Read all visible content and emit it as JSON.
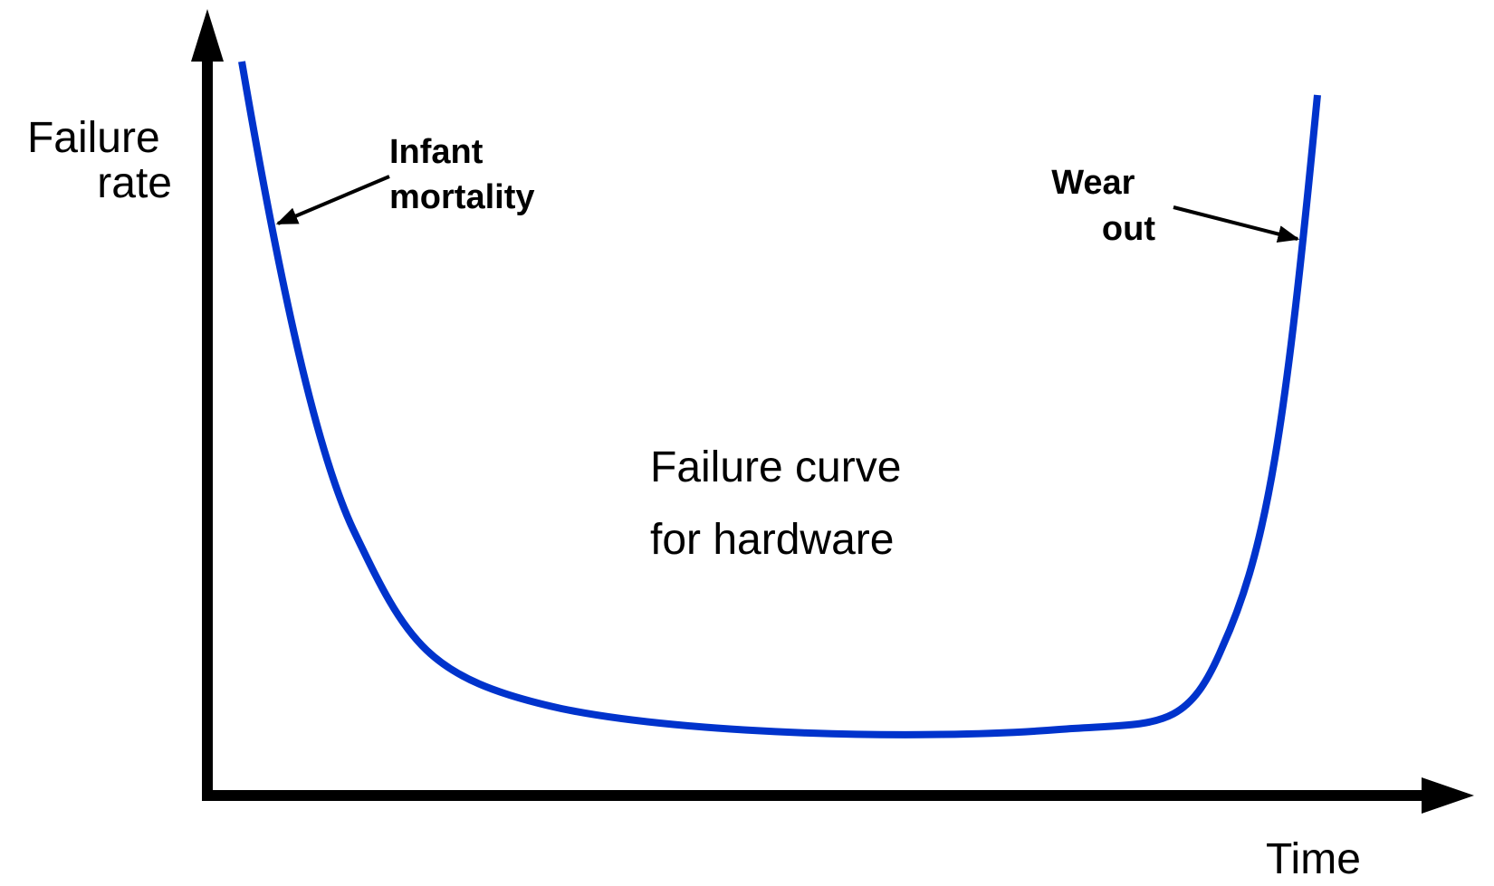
{
  "axes": {
    "y_label_lines": [
      "Failure",
      "rate"
    ],
    "x_label": "Time"
  },
  "annotations": {
    "infant_mortality_lines": [
      "Infant",
      "mortality"
    ],
    "wear_out_lines": [
      "Wear",
      "out"
    ]
  },
  "caption_lines": [
    "Failure curve",
    "for hardware"
  ],
  "colors": {
    "curve": "#0033cc",
    "axes": "#000000",
    "text": "#000000"
  }
}
